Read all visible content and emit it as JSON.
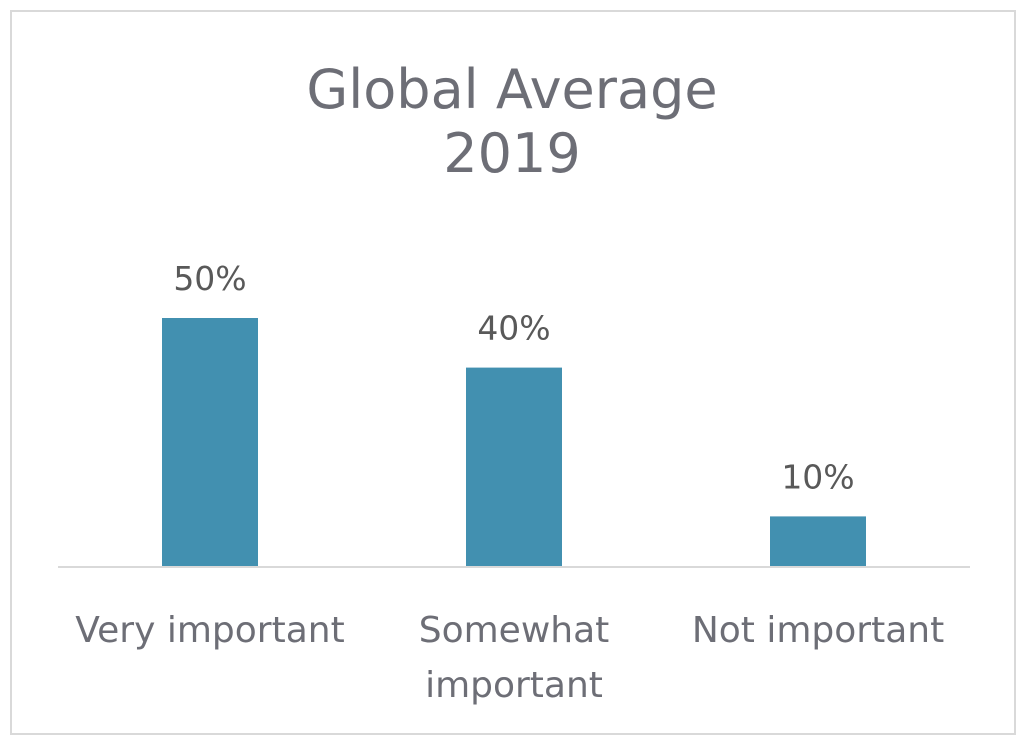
{
  "chart_data": {
    "type": "bar",
    "title_lines": [
      "Global Average",
      "2019"
    ],
    "categories": [
      [
        "Very important"
      ],
      [
        "Somewhat",
        "important"
      ],
      [
        "Not important"
      ]
    ],
    "values": [
      50,
      40,
      10
    ],
    "value_labels": [
      "50%",
      "40%",
      "10%"
    ],
    "xlabel": "",
    "ylabel": "",
    "ylim": [
      0,
      50
    ],
    "grid": false,
    "legend": "none",
    "bar_color": "#4290b0",
    "axis_color": "#d9d9d9",
    "text_color": "#6d6e76"
  }
}
